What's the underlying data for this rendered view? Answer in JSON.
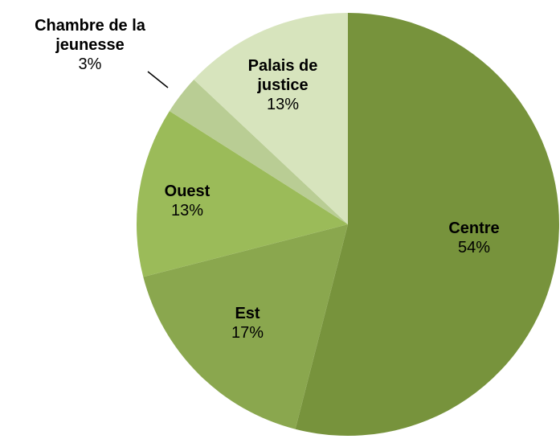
{
  "chart_data": {
    "type": "pie",
    "categories": [
      "Centre",
      "Est",
      "Ouest",
      "Chambre de la jeunesse",
      "Palais de justice"
    ],
    "values": [
      54,
      17,
      13,
      3,
      13
    ],
    "value_labels": [
      "54%",
      "17%",
      "13%",
      "3%",
      "13%"
    ],
    "colors": [
      "#77933c",
      "#8aa74e",
      "#9bbb59",
      "#b9cd94",
      "#d7e4bd"
    ]
  }
}
